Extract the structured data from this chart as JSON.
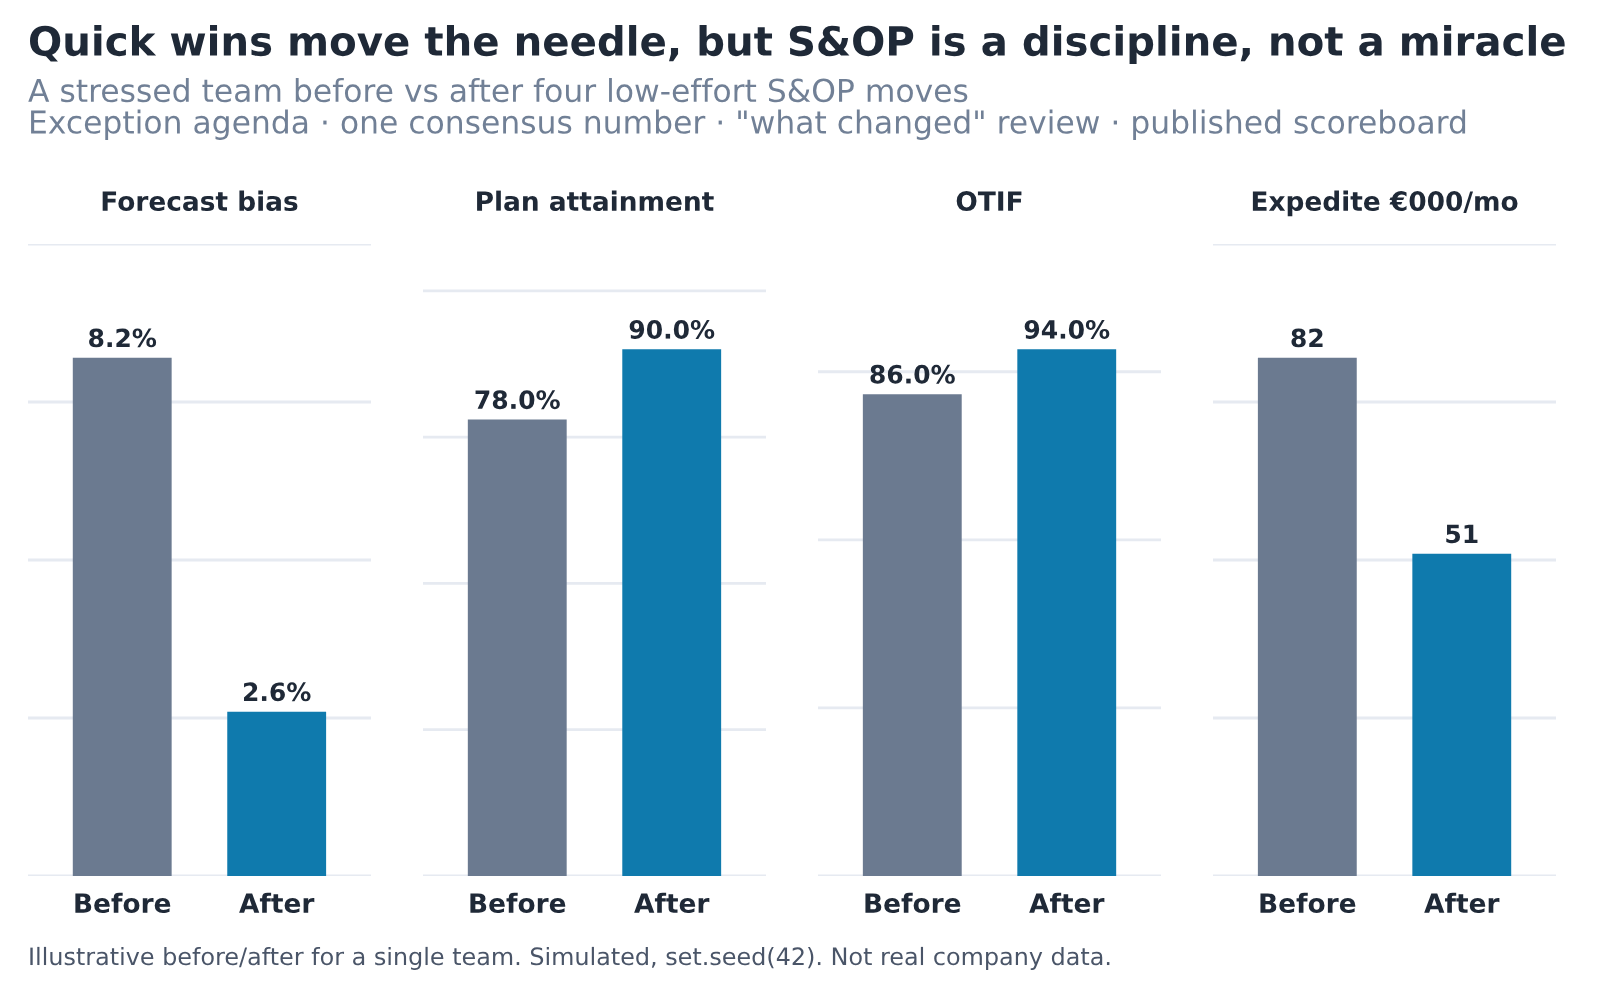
{
  "chart_data": [
    {
      "type": "other",
      "title": "Quick wins move the needle, but S&OP is a discipline, not a miracle",
      "subtitle": "A stressed team before vs after four low-effort S&OP moves\nException agenda · one consensus number · \"what changed\" review · published scoreboard",
      "annotations": [
        "Illustrative before/after for a single team. Simulated, set.seed(42). Not real company data."
      ]
    },
    {
      "type": "bar",
      "title": "Forecast bias",
      "categories": [
        "Before",
        "After"
      ],
      "values": [
        8.2,
        2.6
      ],
      "value_labels": [
        "8.2%",
        "2.6%"
      ],
      "colors": [
        "#6b7a90",
        "#0f7aad"
      ],
      "ylim": [
        0,
        10
      ],
      "yticks": [
        {
          "value": 0,
          "label": null
        },
        {
          "value": 2.5,
          "label": null
        },
        {
          "value": 5,
          "label": null
        },
        {
          "value": 7.5,
          "label": null
        },
        {
          "value": 10,
          "label": null
        }
      ],
      "grid": "y",
      "tick_labels": "x"
    },
    {
      "type": "bar",
      "title": "Plan attainment",
      "categories": [
        "Before",
        "After"
      ],
      "values": [
        78.0,
        90.0
      ],
      "value_labels": [
        "78.0%",
        "90.0%"
      ],
      "colors": [
        "#6b7a90",
        "#0f7aad"
      ],
      "yticks": [
        {
          "value": 0,
          "label": null
        },
        {
          "value": 25,
          "label": null
        },
        {
          "value": 50,
          "label": null
        },
        {
          "value": 75,
          "label": null
        },
        {
          "value": 100,
          "label": null
        }
      ],
      "grid": "y",
      "tick_labels": "x"
    },
    {
      "type": "bar",
      "title": "OTIF",
      "categories": [
        "Before",
        "After"
      ],
      "values": [
        86.0,
        94.0
      ],
      "value_labels": [
        "86.0%",
        "94.0%"
      ],
      "colors": [
        "#6b7a90",
        "#0f7aad"
      ],
      "yticks": [
        {
          "value": 0,
          "label": null
        },
        {
          "value": 30,
          "label": null
        },
        {
          "value": 60,
          "label": null
        },
        {
          "value": 90,
          "label": null
        }
      ],
      "grid": "y",
      "tick_labels": "x"
    },
    {
      "type": "bar",
      "title": "Expedite €000/mo",
      "categories": [
        "Before",
        "After"
      ],
      "values": [
        82,
        51
      ],
      "data_labels": true,
      "colors": [
        "#6b7a90",
        "#0f7aad"
      ],
      "ylim": [
        0,
        100
      ],
      "yticks": [
        {
          "value": 0,
          "label": null
        },
        {
          "value": 25,
          "label": null
        },
        {
          "value": 50,
          "label": null
        },
        {
          "value": 75,
          "label": null
        },
        {
          "value": 100,
          "label": null
        }
      ],
      "grid": "y",
      "tick_labels": "x"
    }
  ]
}
